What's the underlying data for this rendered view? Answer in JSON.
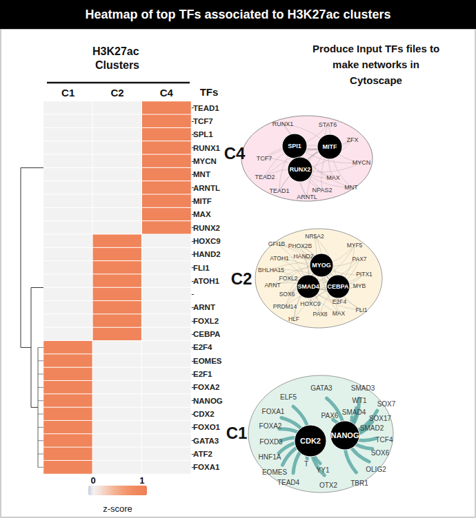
{
  "header": {
    "title": "Heatmap of top TFs associated to H3K27ac clusters"
  },
  "chart_data": {
    "type": "heatmap",
    "title": "H3K27ac Clusters",
    "columns": [
      "C1",
      "C2",
      "C4"
    ],
    "rows": [
      "TEAD1",
      "TCF7",
      "SPL1",
      "RUNX1",
      "MYCN",
      "MNT",
      "ARNTL",
      "MITF",
      "MAX",
      "RUNX2",
      "HOXC9",
      "HAND2",
      "FLI1",
      "ATOH1",
      null,
      "ARNT",
      "FOXL2",
      "CEBPA",
      "E2F4",
      "EOMES",
      "E2F1",
      "FOXA2",
      "NANOG",
      "CDX2",
      "FOXO1",
      "GATA3",
      "ATF2",
      "FOXA1"
    ],
    "row_axis_label": "TFs",
    "cells": [
      [
        0,
        0,
        1
      ],
      [
        0,
        0,
        1
      ],
      [
        0,
        0,
        1
      ],
      [
        0,
        0,
        1
      ],
      [
        0,
        0,
        1
      ],
      [
        0,
        0,
        1
      ],
      [
        0,
        0,
        1
      ],
      [
        0,
        0,
        1
      ],
      [
        0,
        0,
        1
      ],
      [
        0,
        0,
        1
      ],
      [
        0,
        1,
        0
      ],
      [
        0,
        1,
        0
      ],
      [
        0,
        1,
        0
      ],
      [
        0,
        1,
        0
      ],
      [
        0,
        1,
        0
      ],
      [
        0,
        1,
        0
      ],
      [
        0,
        1,
        0
      ],
      [
        0,
        1,
        0
      ],
      [
        1,
        0,
        0
      ],
      [
        1,
        0,
        0
      ],
      [
        1,
        0,
        0
      ],
      [
        1,
        0,
        0
      ],
      [
        1,
        0,
        0
      ],
      [
        1,
        0,
        0
      ],
      [
        1,
        0,
        0
      ],
      [
        1,
        0,
        0
      ],
      [
        1,
        0,
        0
      ],
      [
        1,
        0,
        0
      ]
    ],
    "colorbar": {
      "range": [
        -0.1,
        1.1
      ],
      "ticks": [
        0,
        1
      ],
      "label": "z-score"
    }
  },
  "network_panel": {
    "title_lines": [
      "Produce Input TFs files to",
      "make networks in",
      "Cytoscape"
    ],
    "networks": [
      {
        "label": "C4",
        "hubs": [
          "SPI1",
          "MITF",
          "RUNX2"
        ],
        "nodes": [
          "RUNX1",
          "STAT6",
          "ZFX",
          "MYCN",
          "MNT",
          "MAX",
          "NPAS2",
          "ARNTL",
          "TEAD1",
          "TEAD2",
          "TCF7"
        ]
      },
      {
        "label": "C2",
        "hubs": [
          "MYOG",
          "SMAD4",
          "CEBPA"
        ],
        "nodes": [
          "NR5A2",
          "MYF5",
          "PAX7",
          "PITX1",
          "MYB",
          "E2F4",
          "FLI1",
          "MAX",
          "PAX8",
          "HOXC9",
          "HLF",
          "PRDM14",
          "SOX6",
          "ARNT",
          "FOXL2",
          "BHLHA15",
          "ATOH1",
          "GFI1B",
          "PHOX2B",
          "HAND2"
        ]
      },
      {
        "label": "C1",
        "hubs": [
          "CDK2",
          "NANOG"
        ],
        "nodes": [
          "GATA3",
          "SMAD3",
          "WT1",
          "SOX7",
          "SMAD4",
          "PAX6",
          "SOX17",
          "SMAD2",
          "TCF4",
          "SOX6",
          "OLIG2",
          "TBR1",
          "OTX2",
          "YY1",
          "T",
          "TEAD4",
          "EOMES",
          "HNF1A",
          "FOXD3",
          "FOXA2",
          "FOXA1",
          "ELF5"
        ]
      }
    ]
  }
}
